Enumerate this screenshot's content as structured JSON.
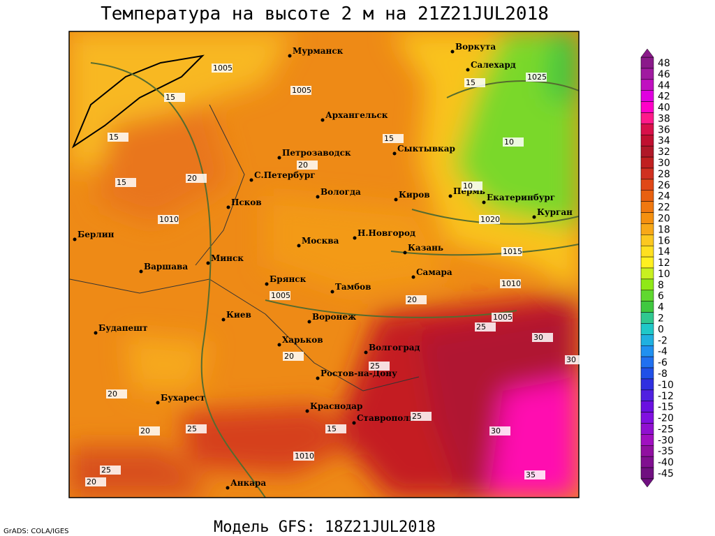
{
  "header": {
    "title": "Температура на высоте 2 м на 21Z21JUL2018"
  },
  "footer": {
    "model": "Модель GFS: 18Z21JUL2018",
    "credit": "GrADS: COLA/IGES"
  },
  "cities": [
    "Мурманск",
    "Воркута",
    "Салехард",
    "Архангельск",
    "Сыктывкар",
    "Петрозаводск",
    "С.Петербург",
    "Вологда",
    "Киров",
    "Пермь",
    "Екатеринбург",
    "Курган",
    "Псков",
    "Берлин",
    "Н.Новгород",
    "Казань",
    "Москва",
    "Варшава",
    "Минск",
    "Самара",
    "Брянск",
    "Тамбов",
    "Киев",
    "Воронеж",
    "Будапешт",
    "Харьков",
    "Волгоград",
    "Ростов-на-Дону",
    "Бухарест",
    "Краснодар",
    "Ставрополь",
    "Анкара"
  ],
  "contour_labels": [
    "1005",
    "1025",
    "1010",
    "1020",
    "1015",
    "1010",
    "1005",
    "1005",
    "1005",
    "1010",
    "15",
    "15",
    "15",
    "15",
    "20",
    "20",
    "15",
    "10",
    "10",
    "20",
    "25",
    "30",
    "30",
    "25",
    "20",
    "20",
    "25",
    "25",
    "30",
    "35",
    "20",
    "25",
    "20",
    "15"
  ],
  "colorbar": {
    "levels": [
      48,
      46,
      44,
      42,
      40,
      38,
      36,
      34,
      32,
      30,
      28,
      26,
      24,
      22,
      20,
      18,
      16,
      14,
      12,
      10,
      8,
      6,
      4,
      2,
      0,
      -2,
      -4,
      -6,
      -8,
      -10,
      -12,
      -15,
      -20,
      -25,
      -30,
      -35,
      -40,
      -45
    ],
    "colors": [
      "#8a1a8a",
      "#a01aa0",
      "#c010c0",
      "#e000e0",
      "#ff00c8",
      "#ff1a8a",
      "#d8104a",
      "#c01030",
      "#b01828",
      "#c02020",
      "#d03020",
      "#e04818",
      "#e86010",
      "#f07810",
      "#f59010",
      "#f8a818",
      "#fcc820",
      "#ffe020",
      "#fff020",
      "#c8f020",
      "#90e818",
      "#60d830",
      "#40c840",
      "#30c890",
      "#20c8c8",
      "#20b0e0",
      "#2090f0",
      "#2070f0",
      "#2050e8",
      "#3030e0",
      "#5020e0",
      "#6a10e0",
      "#8010e0",
      "#9010d0",
      "#a010c0",
      "#9010a0",
      "#801090",
      "#701080"
    ]
  }
}
